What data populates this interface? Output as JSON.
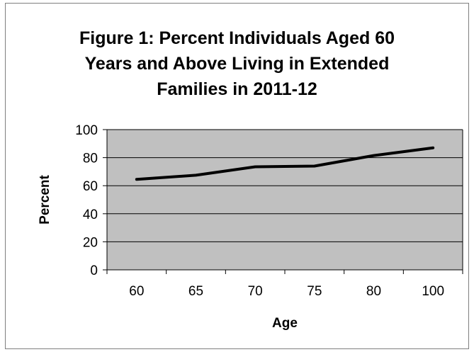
{
  "chart_data": {
    "type": "line",
    "title_lines": [
      "Figure 1: Percent Individuals Aged 60",
      "Years and Above Living in Extended",
      "Families in 2011-12"
    ],
    "categories": [
      "60",
      "65",
      "70",
      "75",
      "80",
      "100"
    ],
    "series": [
      {
        "values": [
          64.5,
          67.5,
          73.5,
          74,
          81.5,
          87
        ]
      }
    ],
    "xlabel": "Age",
    "ylabel": "Percent",
    "ylim": [
      0,
      100
    ],
    "yticks": [
      "0",
      "20",
      "40",
      "60",
      "80",
      "100"
    ],
    "grid": true,
    "plot_background": "#c0c0c0",
    "line_color": "#000000"
  }
}
